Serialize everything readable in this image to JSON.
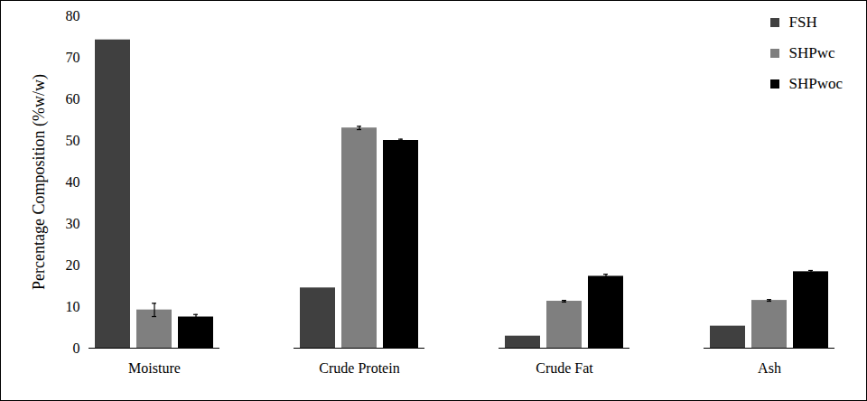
{
  "chart_data": {
    "type": "bar",
    "y_label": "Percentage Composition (%w/w)",
    "categories": [
      "Moisture",
      "Crude Protein",
      "Crude Fat",
      "Ash"
    ],
    "series": [
      {
        "name": "FSH",
        "color": "#404040",
        "values": [
          74.2,
          14.5,
          2.9,
          5.3
        ]
      },
      {
        "name": "SHPwc",
        "color": "#7f7f7f",
        "values": [
          9.2,
          53.0,
          11.3,
          11.5
        ],
        "errors": [
          1.6,
          0.4,
          0.2,
          0.2
        ]
      },
      {
        "name": "SHPwoc",
        "color": "#000000",
        "values": [
          7.5,
          50.0,
          17.3,
          18.4
        ],
        "errors": [
          0.6,
          0.3,
          0.5,
          0.3
        ]
      }
    ],
    "ylim": [
      0,
      80
    ],
    "yticks": [
      0,
      10,
      20,
      30,
      40,
      50,
      60,
      70,
      80
    ],
    "grid": false,
    "legend": "top-right"
  }
}
